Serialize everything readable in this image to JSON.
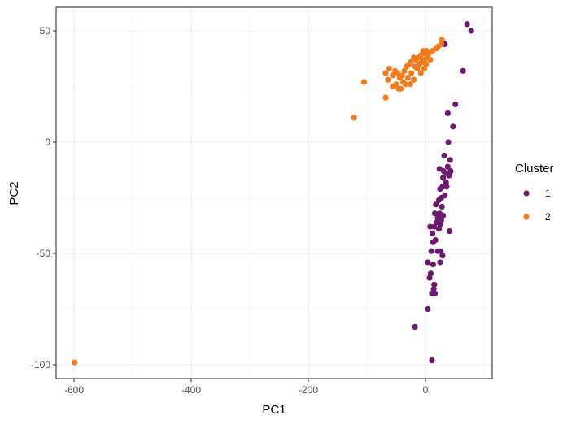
{
  "chart_data": {
    "type": "scatter",
    "title": "",
    "xlabel": "PC1",
    "ylabel": "PC2",
    "xlim": [
      -632,
      112
    ],
    "ylim": [
      -106,
      60
    ],
    "x_ticks": [
      -600,
      -400,
      -200,
      0
    ],
    "y_ticks": [
      -100,
      -50,
      0,
      50
    ],
    "x_tick_labels": [
      "-600",
      "-400",
      "-200",
      "0"
    ],
    "y_tick_labels": [
      "-100",
      "-50",
      "0",
      "50"
    ],
    "grid": true,
    "legend": {
      "title": "Cluster",
      "position": "right",
      "entries": [
        {
          "label": "1",
          "color": "#6B1A6F"
        },
        {
          "label": "2",
          "color": "#F07C1E"
        }
      ]
    },
    "series": [
      {
        "name": "1",
        "color": "#6B1A6F",
        "points": [
          [
            71,
            53
          ],
          [
            78,
            50
          ],
          [
            33,
            44
          ],
          [
            64,
            32
          ],
          [
            51,
            17
          ],
          [
            38,
            13
          ],
          [
            47,
            7
          ],
          [
            39,
            0
          ],
          [
            32,
            -6
          ],
          [
            42,
            -8
          ],
          [
            38,
            -11
          ],
          [
            24,
            -12
          ],
          [
            31,
            -13
          ],
          [
            36,
            -14
          ],
          [
            43,
            -13
          ],
          [
            30,
            -16
          ],
          [
            40,
            -15
          ],
          [
            35,
            -18
          ],
          [
            29,
            -20
          ],
          [
            25,
            -21
          ],
          [
            36,
            -20
          ],
          [
            27,
            -25
          ],
          [
            23,
            -26
          ],
          [
            33,
            -24
          ],
          [
            18,
            -28
          ],
          [
            28,
            -29
          ],
          [
            24,
            -32
          ],
          [
            16,
            -32
          ],
          [
            21,
            -34
          ],
          [
            27,
            -35
          ],
          [
            30,
            -33
          ],
          [
            19,
            -36
          ],
          [
            25,
            -37
          ],
          [
            15,
            -38
          ],
          [
            8,
            -38
          ],
          [
            23,
            -39
          ],
          [
            12,
            -41
          ],
          [
            41,
            -40
          ],
          [
            17,
            -44
          ],
          [
            13,
            -45
          ],
          [
            10,
            -49
          ],
          [
            21,
            -49
          ],
          [
            26,
            -49
          ],
          [
            29,
            -51
          ],
          [
            4,
            -54
          ],
          [
            13,
            -55
          ],
          [
            25,
            -54
          ],
          [
            9,
            -59
          ],
          [
            7,
            -61
          ],
          [
            15,
            -64
          ],
          [
            14,
            -66
          ],
          [
            16,
            -68
          ],
          [
            11,
            -68
          ],
          [
            4,
            -75
          ],
          [
            -18,
            -83
          ],
          [
            11,
            -98
          ]
        ]
      },
      {
        "name": "2",
        "color": "#F07C1E",
        "points": [
          [
            28,
            46
          ],
          [
            27,
            44
          ],
          [
            22,
            43
          ],
          [
            18,
            42
          ],
          [
            12,
            41
          ],
          [
            2,
            41
          ],
          [
            -4,
            41
          ],
          [
            6,
            40
          ],
          [
            -1,
            40
          ],
          [
            -8,
            39
          ],
          [
            3,
            38
          ],
          [
            8,
            37
          ],
          [
            -2,
            37
          ],
          [
            -12,
            38
          ],
          [
            -20,
            38
          ],
          [
            -16,
            37
          ],
          [
            -6,
            36
          ],
          [
            1,
            35
          ],
          [
            -10,
            35
          ],
          [
            -25,
            36
          ],
          [
            -28,
            35
          ],
          [
            -18,
            34
          ],
          [
            -2,
            33
          ],
          [
            -14,
            33
          ],
          [
            -32,
            34
          ],
          [
            -8,
            31
          ],
          [
            -24,
            31
          ],
          [
            -36,
            32
          ],
          [
            -48,
            31
          ],
          [
            -40,
            30
          ],
          [
            -62,
            33
          ],
          [
            -52,
            32
          ],
          [
            -68,
            31
          ],
          [
            -44,
            29
          ],
          [
            -56,
            30
          ],
          [
            -30,
            29
          ],
          [
            -20,
            28
          ],
          [
            -38,
            27
          ],
          [
            -50,
            26
          ],
          [
            -64,
            28
          ],
          [
            -26,
            26
          ],
          [
            -34,
            26
          ],
          [
            -46,
            24
          ],
          [
            -56,
            25
          ],
          [
            -42,
            24
          ],
          [
            -105,
            27
          ],
          [
            -68,
            20
          ],
          [
            -122,
            11
          ],
          [
            -599,
            -99
          ]
        ]
      }
    ]
  }
}
